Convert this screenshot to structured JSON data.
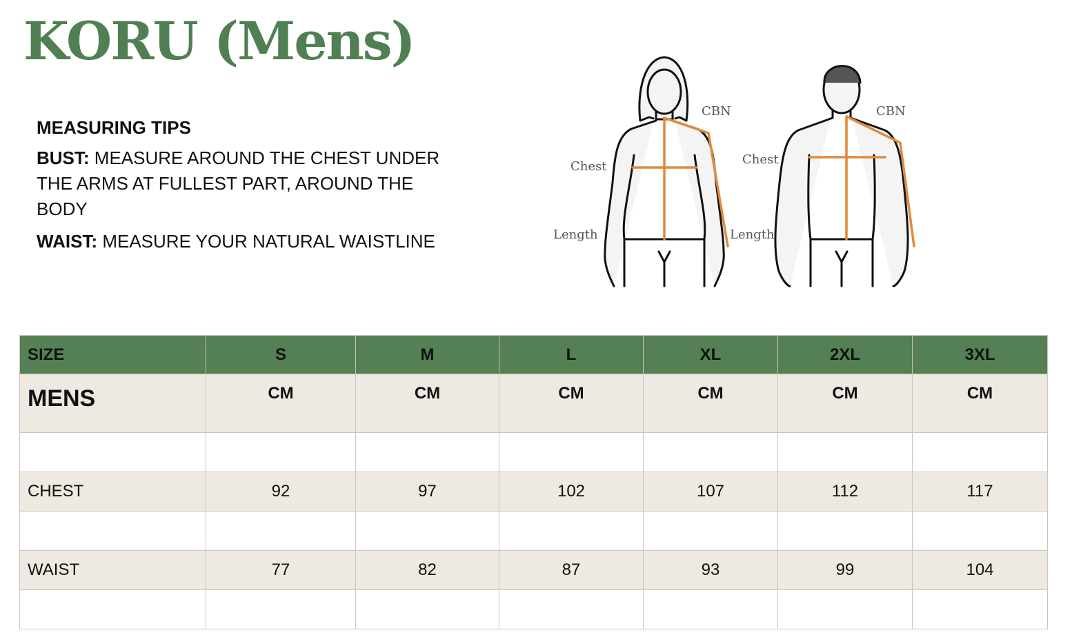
{
  "title": "KORU (Mens)",
  "tips": {
    "heading": "MEASURING TIPS",
    "bust_label": "BUST:",
    "bust_text": "MEASURE AROUND THE CHEST UNDER THE ARMS AT FULLEST PART, AROUND THE BODY",
    "waist_label": "WAIST:",
    "waist_text": "MEASURE YOUR NATURAL WAISTLINE"
  },
  "diagram": {
    "female": {
      "cbn": "CBN",
      "chest": "Chest",
      "length": "Length"
    },
    "male": {
      "cbn": "CBN",
      "chest": "Chest",
      "length": "Length"
    },
    "accent_color": "#e08a3c"
  },
  "colors": {
    "title": "#4f7f52",
    "header_bg": "#548054",
    "shaded_row": "#eee9e1"
  },
  "table": {
    "size_header": "SIZE",
    "sizes": [
      "S",
      "M",
      "L",
      "XL",
      "2XL",
      "3XL"
    ],
    "group_label": "MENS",
    "units": [
      "CM",
      "CM",
      "CM",
      "CM",
      "CM",
      "CM"
    ],
    "rows": [
      {
        "label": "CHEST",
        "values": [
          "92",
          "97",
          "102",
          "107",
          "112",
          "117"
        ]
      },
      {
        "label": "WAIST",
        "values": [
          "77",
          "82",
          "87",
          "93",
          "99",
          "104"
        ]
      }
    ]
  }
}
